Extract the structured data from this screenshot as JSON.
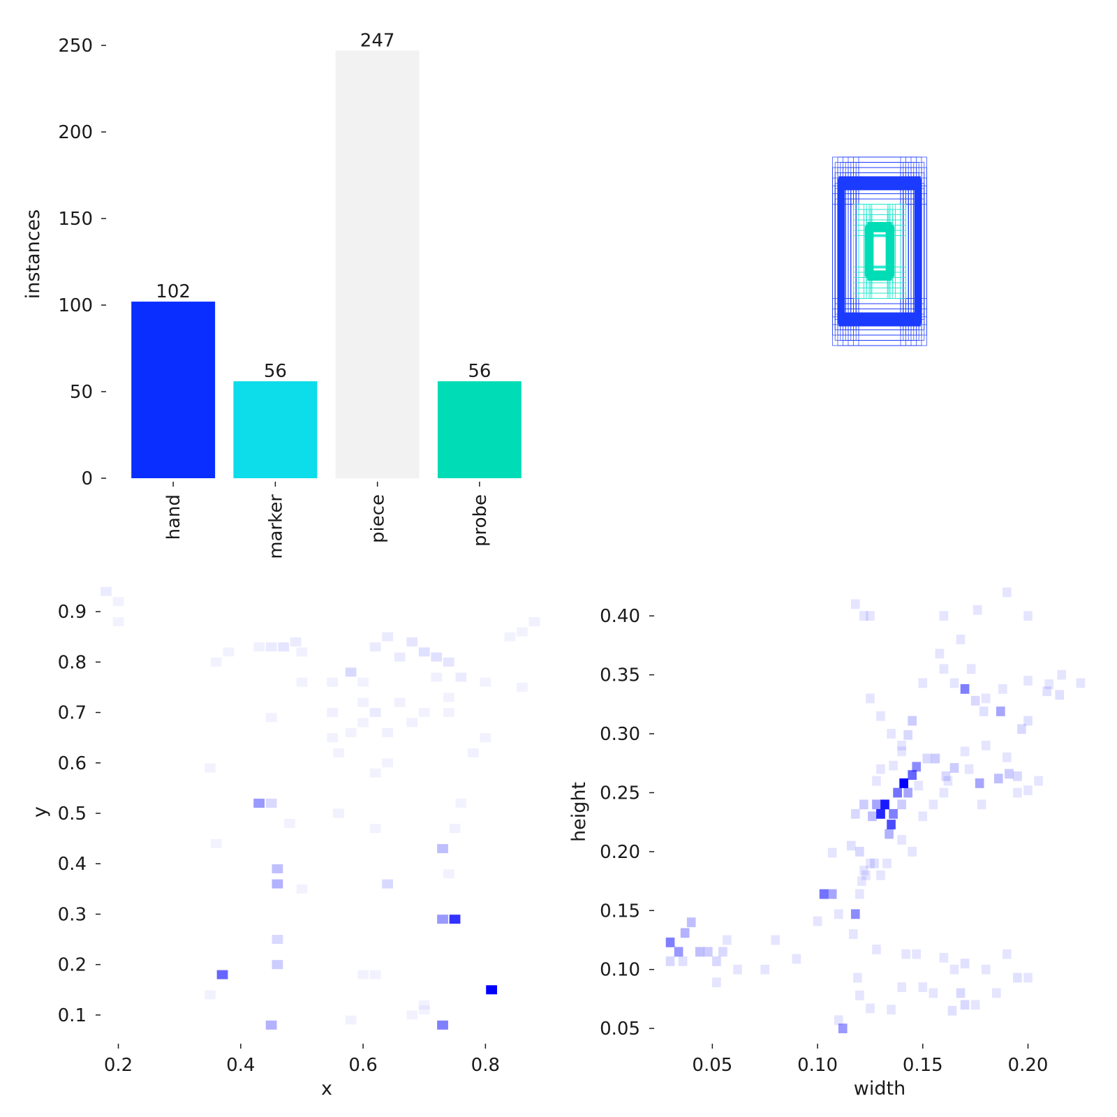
{
  "colors": {
    "hand": "#0a2eff",
    "marker": "#0ddcea",
    "piece": "#f2f2f2",
    "probe": "#00dcb6",
    "heat": "#0000ff",
    "boxes_outer": "#1b3bff",
    "boxes_inner": "#20e8d0"
  },
  "chart_data": [
    {
      "type": "bar",
      "categories": [
        "hand",
        "marker",
        "piece",
        "probe"
      ],
      "values": [
        102,
        56,
        247,
        56
      ],
      "value_labels": [
        "102",
        "56",
        "247",
        "56"
      ],
      "ylabel": "instances",
      "xlabel": "",
      "ylim": [
        0,
        250
      ],
      "yticks": [
        0,
        50,
        100,
        150,
        200,
        250
      ],
      "ytick_labels": [
        "0",
        "50",
        "100",
        "150",
        "200",
        "250"
      ],
      "grid": false
    },
    {
      "type": "other",
      "title": "",
      "description_kind": "overlaid bounding boxes centered, outer blue set and inner cyan set",
      "outer_box_widths": [
        0.08,
        0.09,
        0.1,
        0.11,
        0.12,
        0.13,
        0.14,
        0.15,
        0.16,
        0.17,
        0.18
      ],
      "outer_box_heights": [
        0.18,
        0.2,
        0.22,
        0.24,
        0.25,
        0.26,
        0.28,
        0.3,
        0.32,
        0.34,
        0.36
      ],
      "inner_box_widths": [
        0.03,
        0.035,
        0.04,
        0.05,
        0.06,
        0.08,
        0.1
      ],
      "inner_box_heights": [
        0.06,
        0.08,
        0.1,
        0.12,
        0.14,
        0.16,
        0.18
      ]
    },
    {
      "type": "heatmap",
      "xlabel": "x",
      "ylabel": "y",
      "xlim": [
        0.18,
        0.9
      ],
      "ylim": [
        0.05,
        0.95
      ],
      "xticks": [
        0.2,
        0.4,
        0.6,
        0.8
      ],
      "xtick_labels": [
        "0.2",
        "0.4",
        "0.6",
        "0.8"
      ],
      "yticks": [
        0.1,
        0.2,
        0.3,
        0.4,
        0.5,
        0.6,
        0.7,
        0.8,
        0.9
      ],
      "ytick_labels": [
        "0.1",
        "0.2",
        "0.3",
        "0.4",
        "0.5",
        "0.6",
        "0.7",
        "0.8",
        "0.9"
      ],
      "cell_size": [
        0.018,
        0.018
      ],
      "cells": [
        [
          0.81,
          0.15,
          1.0
        ],
        [
          0.75,
          0.29,
          0.8
        ],
        [
          0.73,
          0.29,
          0.4
        ],
        [
          0.37,
          0.18,
          0.6
        ],
        [
          0.73,
          0.08,
          0.5
        ],
        [
          0.43,
          0.52,
          0.4
        ],
        [
          0.45,
          0.52,
          0.15
        ],
        [
          0.46,
          0.36,
          0.3
        ],
        [
          0.46,
          0.39,
          0.25
        ],
        [
          0.73,
          0.43,
          0.25
        ],
        [
          0.45,
          0.08,
          0.3
        ],
        [
          0.46,
          0.2,
          0.2
        ],
        [
          0.46,
          0.25,
          0.15
        ],
        [
          0.64,
          0.36,
          0.15
        ],
        [
          0.58,
          0.78,
          0.15
        ],
        [
          0.7,
          0.82,
          0.12
        ],
        [
          0.72,
          0.81,
          0.12
        ],
        [
          0.68,
          0.84,
          0.1
        ],
        [
          0.74,
          0.8,
          0.1
        ],
        [
          0.66,
          0.81,
          0.08
        ],
        [
          0.62,
          0.83,
          0.08
        ],
        [
          0.64,
          0.85,
          0.08
        ],
        [
          0.47,
          0.83,
          0.1
        ],
        [
          0.49,
          0.84,
          0.08
        ],
        [
          0.45,
          0.83,
          0.08
        ],
        [
          0.43,
          0.83,
          0.06
        ],
        [
          0.5,
          0.82,
          0.06
        ],
        [
          0.76,
          0.77,
          0.08
        ],
        [
          0.72,
          0.77,
          0.06
        ],
        [
          0.6,
          0.72,
          0.06
        ],
        [
          0.62,
          0.7,
          0.08
        ],
        [
          0.66,
          0.72,
          0.06
        ],
        [
          0.55,
          0.7,
          0.06
        ],
        [
          0.58,
          0.66,
          0.05
        ],
        [
          0.64,
          0.66,
          0.06
        ],
        [
          0.68,
          0.68,
          0.06
        ],
        [
          0.7,
          0.7,
          0.05
        ],
        [
          0.74,
          0.7,
          0.05
        ],
        [
          0.56,
          0.62,
          0.05
        ],
        [
          0.62,
          0.58,
          0.05
        ],
        [
          0.64,
          0.6,
          0.05
        ],
        [
          0.78,
          0.62,
          0.06
        ],
        [
          0.88,
          0.88,
          0.06
        ],
        [
          0.86,
          0.86,
          0.05
        ],
        [
          0.84,
          0.85,
          0.05
        ],
        [
          0.18,
          0.94,
          0.08
        ],
        [
          0.2,
          0.92,
          0.05
        ],
        [
          0.2,
          0.88,
          0.05
        ],
        [
          0.36,
          0.8,
          0.05
        ],
        [
          0.38,
          0.82,
          0.05
        ],
        [
          0.55,
          0.76,
          0.06
        ],
        [
          0.6,
          0.76,
          0.05
        ],
        [
          0.8,
          0.76,
          0.05
        ],
        [
          0.86,
          0.75,
          0.05
        ],
        [
          0.74,
          0.73,
          0.05
        ],
        [
          0.6,
          0.68,
          0.05
        ],
        [
          0.48,
          0.48,
          0.05
        ],
        [
          0.56,
          0.5,
          0.06
        ],
        [
          0.5,
          0.35,
          0.05
        ],
        [
          0.62,
          0.47,
          0.05
        ],
        [
          0.75,
          0.47,
          0.06
        ],
        [
          0.74,
          0.38,
          0.05
        ],
        [
          0.76,
          0.52,
          0.05
        ],
        [
          0.35,
          0.14,
          0.05
        ],
        [
          0.7,
          0.11,
          0.05
        ],
        [
          0.7,
          0.12,
          0.05
        ],
        [
          0.58,
          0.09,
          0.05
        ],
        [
          0.6,
          0.18,
          0.05
        ],
        [
          0.62,
          0.18,
          0.05
        ],
        [
          0.68,
          0.1,
          0.05
        ],
        [
          0.35,
          0.59,
          0.05
        ],
        [
          0.36,
          0.44,
          0.05
        ],
        [
          0.45,
          0.69,
          0.05
        ],
        [
          0.55,
          0.65,
          0.05
        ],
        [
          0.8,
          0.65,
          0.05
        ],
        [
          0.5,
          0.76,
          0.05
        ]
      ]
    },
    {
      "type": "heatmap",
      "xlabel": "width",
      "ylabel": "height",
      "xlim": [
        0.025,
        0.235
      ],
      "ylim": [
        0.04,
        0.425
      ],
      "xticks": [
        0.05,
        0.1,
        0.15,
        0.2
      ],
      "xtick_labels": [
        "0.05",
        "0.10",
        "0.15",
        "0.20"
      ],
      "yticks": [
        0.05,
        0.1,
        0.15,
        0.2,
        0.25,
        0.3,
        0.35,
        0.4
      ],
      "ytick_labels": [
        "0.05",
        "0.10",
        "0.15",
        "0.20",
        "0.25",
        "0.30",
        "0.35",
        "0.40"
      ],
      "cell_size": [
        0.0042,
        0.0082
      ],
      "cells": [
        [
          0.141,
          0.258,
          1.0
        ],
        [
          0.132,
          0.24,
          0.9
        ],
        [
          0.13,
          0.232,
          0.85
        ],
        [
          0.135,
          0.223,
          0.7
        ],
        [
          0.145,
          0.265,
          0.6
        ],
        [
          0.138,
          0.25,
          0.55
        ],
        [
          0.136,
          0.232,
          0.5
        ],
        [
          0.147,
          0.272,
          0.45
        ],
        [
          0.128,
          0.24,
          0.35
        ],
        [
          0.134,
          0.215,
          0.3
        ],
        [
          0.126,
          0.23,
          0.25
        ],
        [
          0.122,
          0.24,
          0.2
        ],
        [
          0.118,
          0.232,
          0.15
        ],
        [
          0.143,
          0.25,
          0.35
        ],
        [
          0.14,
          0.24,
          0.2
        ],
        [
          0.103,
          0.164,
          0.55
        ],
        [
          0.107,
          0.164,
          0.35
        ],
        [
          0.118,
          0.147,
          0.45
        ],
        [
          0.17,
          0.338,
          0.5
        ],
        [
          0.187,
          0.319,
          0.35
        ],
        [
          0.177,
          0.258,
          0.35
        ],
        [
          0.03,
          0.123,
          0.5
        ],
        [
          0.034,
          0.115,
          0.4
        ],
        [
          0.037,
          0.131,
          0.3
        ],
        [
          0.04,
          0.14,
          0.25
        ],
        [
          0.044,
          0.115,
          0.25
        ],
        [
          0.048,
          0.115,
          0.2
        ],
        [
          0.052,
          0.107,
          0.15
        ],
        [
          0.055,
          0.115,
          0.15
        ],
        [
          0.03,
          0.107,
          0.15
        ],
        [
          0.036,
          0.107,
          0.12
        ],
        [
          0.112,
          0.05,
          0.4
        ],
        [
          0.186,
          0.262,
          0.25
        ],
        [
          0.191,
          0.266,
          0.2
        ],
        [
          0.195,
          0.264,
          0.15
        ],
        [
          0.165,
          0.271,
          0.2
        ],
        [
          0.161,
          0.264,
          0.15
        ],
        [
          0.156,
          0.279,
          0.2
        ],
        [
          0.152,
          0.279,
          0.15
        ],
        [
          0.143,
          0.299,
          0.15
        ],
        [
          0.145,
          0.311,
          0.2
        ],
        [
          0.175,
          0.328,
          0.15
        ],
        [
          0.179,
          0.319,
          0.12
        ],
        [
          0.209,
          0.336,
          0.12
        ],
        [
          0.215,
          0.333,
          0.12
        ],
        [
          0.197,
          0.304,
          0.15
        ],
        [
          0.2,
          0.311,
          0.12
        ],
        [
          0.12,
          0.2,
          0.15
        ],
        [
          0.116,
          0.205,
          0.12
        ],
        [
          0.127,
          0.19,
          0.12
        ],
        [
          0.13,
          0.18,
          0.1
        ],
        [
          0.122,
          0.184,
          0.1
        ],
        [
          0.133,
          0.19,
          0.1
        ],
        [
          0.16,
          0.25,
          0.1
        ],
        [
          0.162,
          0.26,
          0.1
        ],
        [
          0.17,
          0.285,
          0.1
        ],
        [
          0.172,
          0.27,
          0.1
        ],
        [
          0.17,
          0.105,
          0.12
        ],
        [
          0.168,
          0.08,
          0.15
        ],
        [
          0.17,
          0.07,
          0.15
        ],
        [
          0.175,
          0.07,
          0.1
        ],
        [
          0.164,
          0.065,
          0.12
        ],
        [
          0.155,
          0.08,
          0.1
        ],
        [
          0.15,
          0.085,
          0.1
        ],
        [
          0.195,
          0.093,
          0.12
        ],
        [
          0.2,
          0.093,
          0.1
        ],
        [
          0.117,
          0.13,
          0.1
        ],
        [
          0.128,
          0.117,
          0.1
        ],
        [
          0.119,
          0.093,
          0.1
        ],
        [
          0.11,
          0.057,
          0.1
        ],
        [
          0.14,
          0.085,
          0.1
        ],
        [
          0.142,
          0.113,
          0.1
        ],
        [
          0.147,
          0.113,
          0.1
        ],
        [
          0.16,
          0.11,
          0.1
        ],
        [
          0.165,
          0.1,
          0.1
        ],
        [
          0.18,
          0.1,
          0.1
        ],
        [
          0.185,
          0.08,
          0.1
        ],
        [
          0.19,
          0.113,
          0.1
        ],
        [
          0.135,
          0.066,
          0.1
        ],
        [
          0.125,
          0.067,
          0.1
        ],
        [
          0.12,
          0.078,
          0.1
        ],
        [
          0.118,
          0.41,
          0.1
        ],
        [
          0.122,
          0.4,
          0.1
        ],
        [
          0.125,
          0.4,
          0.1
        ],
        [
          0.176,
          0.405,
          0.1
        ],
        [
          0.19,
          0.42,
          0.1
        ],
        [
          0.2,
          0.4,
          0.1
        ],
        [
          0.216,
          0.35,
          0.1
        ],
        [
          0.225,
          0.343,
          0.1
        ],
        [
          0.21,
          0.342,
          0.1
        ],
        [
          0.2,
          0.345,
          0.1
        ],
        [
          0.188,
          0.338,
          0.1
        ],
        [
          0.18,
          0.33,
          0.1
        ],
        [
          0.173,
          0.355,
          0.1
        ],
        [
          0.165,
          0.343,
          0.1
        ],
        [
          0.158,
          0.368,
          0.1
        ],
        [
          0.16,
          0.355,
          0.1
        ],
        [
          0.168,
          0.38,
          0.1
        ],
        [
          0.16,
          0.4,
          0.1
        ],
        [
          0.15,
          0.343,
          0.1
        ],
        [
          0.125,
          0.33,
          0.1
        ],
        [
          0.13,
          0.315,
          0.1
        ],
        [
          0.135,
          0.3,
          0.1
        ],
        [
          0.14,
          0.29,
          0.1
        ],
        [
          0.107,
          0.199,
          0.1
        ],
        [
          0.09,
          0.109,
          0.1
        ],
        [
          0.08,
          0.125,
          0.1
        ],
        [
          0.075,
          0.1,
          0.1
        ],
        [
          0.062,
          0.1,
          0.1
        ],
        [
          0.057,
          0.125,
          0.1
        ],
        [
          0.052,
          0.089,
          0.1
        ],
        [
          0.1,
          0.141,
          0.1
        ],
        [
          0.11,
          0.147,
          0.1
        ],
        [
          0.12,
          0.164,
          0.1
        ],
        [
          0.121,
          0.175,
          0.1
        ],
        [
          0.123,
          0.18,
          0.1
        ],
        [
          0.125,
          0.19,
          0.1
        ],
        [
          0.14,
          0.21,
          0.1
        ],
        [
          0.145,
          0.2,
          0.1
        ],
        [
          0.15,
          0.23,
          0.1
        ],
        [
          0.155,
          0.24,
          0.1
        ],
        [
          0.148,
          0.256,
          0.1
        ],
        [
          0.13,
          0.27,
          0.1
        ],
        [
          0.128,
          0.26,
          0.1
        ],
        [
          0.136,
          0.273,
          0.1
        ],
        [
          0.14,
          0.285,
          0.1
        ],
        [
          0.18,
          0.29,
          0.1
        ],
        [
          0.19,
          0.28,
          0.1
        ],
        [
          0.195,
          0.25,
          0.1
        ],
        [
          0.2,
          0.252,
          0.1
        ],
        [
          0.205,
          0.26,
          0.1
        ],
        [
          0.178,
          0.24,
          0.1
        ]
      ]
    }
  ]
}
